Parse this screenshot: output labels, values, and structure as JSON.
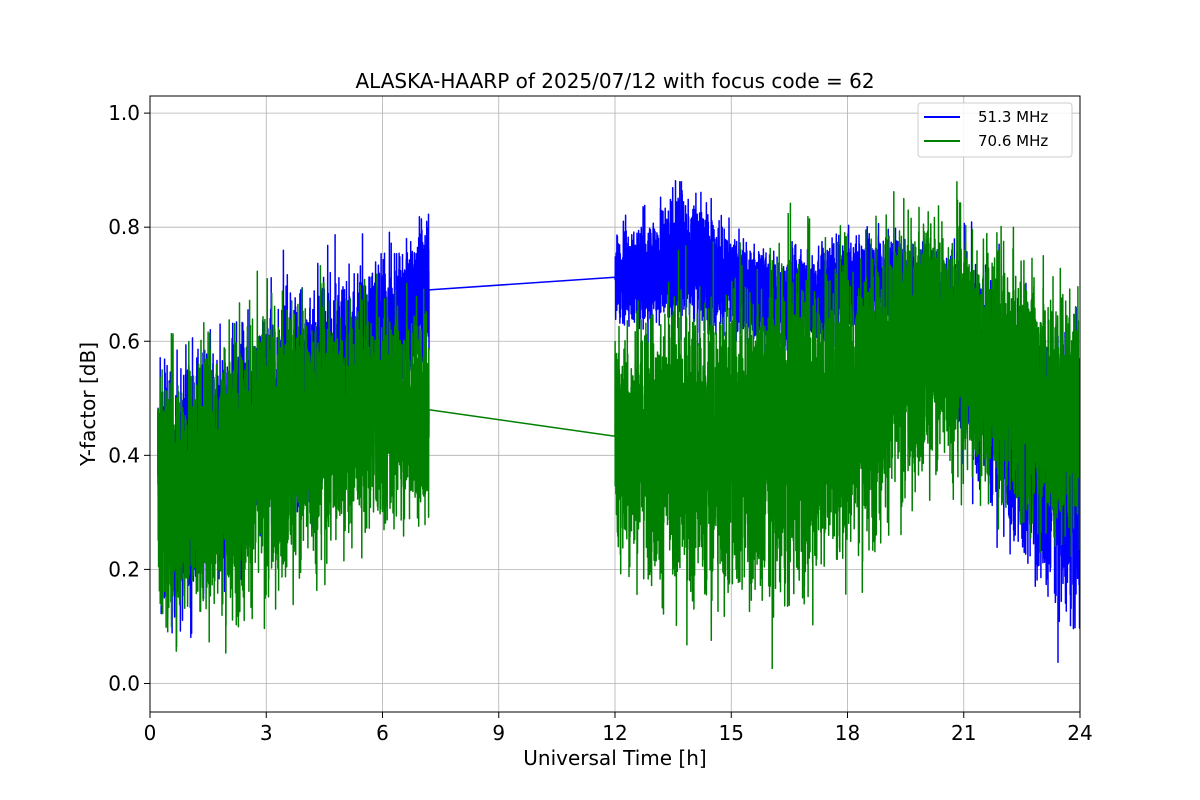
{
  "chart_data": {
    "type": "line",
    "title": "ALASKA-HAARP of 2025/07/12 with focus code = 62",
    "xlabel": "Universal Time [h]",
    "ylabel": "Y-factor [dB]",
    "xlim": [
      0,
      24
    ],
    "ylim": [
      -0.05,
      1.03
    ],
    "xticks": [
      0,
      3,
      6,
      9,
      12,
      15,
      18,
      21,
      24
    ],
    "xtick_labels": [
      "0",
      "3",
      "6",
      "9",
      "12",
      "15",
      "18",
      "21",
      "24"
    ],
    "yticks": [
      0.0,
      0.2,
      0.4,
      0.6,
      0.8,
      1.0
    ],
    "ytick_labels": [
      "0.0",
      "0.2",
      "0.4",
      "0.6",
      "0.8",
      "1.0"
    ],
    "grid": true,
    "legend_position": "top-right",
    "series": [
      {
        "name": "51.3 MHz",
        "color": "#0000ff",
        "segments": [
          {
            "x_range": [
              0.2,
              7.2
            ],
            "x_step": 0.1,
            "center": [
              0.38,
              0.36,
              0.35,
              0.34,
              0.34,
              0.33,
              0.33,
              0.34,
              0.34,
              0.34,
              0.35,
              0.35,
              0.36,
              0.36,
              0.37,
              0.38,
              0.38,
              0.39,
              0.4,
              0.4,
              0.41,
              0.42,
              0.42,
              0.43,
              0.44,
              0.44,
              0.45,
              0.45,
              0.46,
              0.46,
              0.47,
              0.47,
              0.48,
              0.48,
              0.49,
              0.49,
              0.5,
              0.5,
              0.5,
              0.5,
              0.5,
              0.51,
              0.51,
              0.52,
              0.52,
              0.53,
              0.54,
              0.54,
              0.55,
              0.55,
              0.56,
              0.56,
              0.57,
              0.58,
              0.58,
              0.59,
              0.59,
              0.6,
              0.6,
              0.61,
              0.62,
              0.62,
              0.63,
              0.64,
              0.65,
              0.66,
              0.67,
              0.68,
              0.69,
              0.69,
              0.69
            ],
            "spread": [
              0.22,
              0.24,
              0.25,
              0.26,
              0.26,
              0.27,
              0.27,
              0.27,
              0.27,
              0.27,
              0.27,
              0.27,
              0.27,
              0.27,
              0.27,
              0.27,
              0.26,
              0.26,
              0.26,
              0.26,
              0.26,
              0.26,
              0.26,
              0.26,
              0.26,
              0.26,
              0.25,
              0.25,
              0.25,
              0.25,
              0.25,
              0.25,
              0.25,
              0.25,
              0.25,
              0.24,
              0.24,
              0.24,
              0.24,
              0.24,
              0.24,
              0.24,
              0.24,
              0.23,
              0.23,
              0.23,
              0.23,
              0.22,
              0.22,
              0.22,
              0.21,
              0.21,
              0.21,
              0.2,
              0.2,
              0.2,
              0.19,
              0.19,
              0.18,
              0.18,
              0.17,
              0.17,
              0.16,
              0.16,
              0.15,
              0.15,
              0.15,
              0.14,
              0.14,
              0.14,
              0.14
            ]
          },
          {
            "x_range": [
              12.0,
              24.0
            ],
            "x_step": 0.1,
            "center": [
              0.71,
              0.71,
              0.71,
              0.71,
              0.71,
              0.71,
              0.72,
              0.72,
              0.72,
              0.72,
              0.73,
              0.73,
              0.73,
              0.74,
              0.74,
              0.74,
              0.74,
              0.75,
              0.75,
              0.75,
              0.75,
              0.75,
              0.74,
              0.74,
              0.73,
              0.73,
              0.72,
              0.72,
              0.71,
              0.71,
              0.7,
              0.7,
              0.7,
              0.69,
              0.69,
              0.69,
              0.68,
              0.68,
              0.68,
              0.68,
              0.67,
              0.67,
              0.67,
              0.67,
              0.67,
              0.67,
              0.67,
              0.68,
              0.68,
              0.68,
              0.68,
              0.68,
              0.68,
              0.69,
              0.69,
              0.69,
              0.69,
              0.69,
              0.7,
              0.7,
              0.7,
              0.7,
              0.7,
              0.7,
              0.7,
              0.71,
              0.71,
              0.71,
              0.71,
              0.71,
              0.71,
              0.71,
              0.71,
              0.7,
              0.7,
              0.7,
              0.69,
              0.69,
              0.68,
              0.68,
              0.67,
              0.67,
              0.66,
              0.65,
              0.64,
              0.63,
              0.62,
              0.61,
              0.6,
              0.59,
              0.58,
              0.57,
              0.56,
              0.55,
              0.54,
              0.53,
              0.52,
              0.51,
              0.5,
              0.49,
              0.48,
              0.47,
              0.46,
              0.45,
              0.44,
              0.43,
              0.42,
              0.41,
              0.41,
              0.4,
              0.39,
              0.38,
              0.38,
              0.37,
              0.36,
              0.36,
              0.35,
              0.35,
              0.34,
              0.34,
              0.33
            ],
            "spread": [
              0.09,
              0.09,
              0.09,
              0.1,
              0.1,
              0.1,
              0.11,
              0.11,
              0.12,
              0.12,
              0.13,
              0.13,
              0.14,
              0.14,
              0.15,
              0.15,
              0.15,
              0.15,
              0.15,
              0.15,
              0.15,
              0.15,
              0.14,
              0.14,
              0.13,
              0.13,
              0.12,
              0.12,
              0.11,
              0.11,
              0.1,
              0.1,
              0.1,
              0.1,
              0.1,
              0.1,
              0.1,
              0.1,
              0.1,
              0.1,
              0.1,
              0.1,
              0.1,
              0.1,
              0.1,
              0.1,
              0.1,
              0.1,
              0.1,
              0.1,
              0.1,
              0.1,
              0.1,
              0.1,
              0.1,
              0.1,
              0.1,
              0.1,
              0.1,
              0.1,
              0.1,
              0.1,
              0.1,
              0.1,
              0.1,
              0.1,
              0.1,
              0.1,
              0.1,
              0.1,
              0.1,
              0.1,
              0.1,
              0.1,
              0.1,
              0.1,
              0.1,
              0.1,
              0.11,
              0.11,
              0.12,
              0.12,
              0.13,
              0.14,
              0.15,
              0.16,
              0.17,
              0.18,
              0.19,
              0.2,
              0.21,
              0.22,
              0.23,
              0.24,
              0.24,
              0.25,
              0.25,
              0.26,
              0.26,
              0.27,
              0.27,
              0.27,
              0.28,
              0.28,
              0.28,
              0.28,
              0.28,
              0.28,
              0.28,
              0.28,
              0.28,
              0.28,
              0.28,
              0.28,
              0.28,
              0.28,
              0.28,
              0.28,
              0.28,
              0.28,
              0.28
            ]
          }
        ]
      },
      {
        "name": "70.6 MHz",
        "color": "#008000",
        "segments": [
          {
            "x_range": [
              0.2,
              7.2
            ],
            "x_step": 0.1,
            "center": [
              0.33,
              0.33,
              0.33,
              0.33,
              0.34,
              0.34,
              0.34,
              0.34,
              0.35,
              0.35,
              0.35,
              0.35,
              0.36,
              0.36,
              0.36,
              0.36,
              0.37,
              0.37,
              0.37,
              0.38,
              0.38,
              0.38,
              0.39,
              0.39,
              0.39,
              0.4,
              0.4,
              0.4,
              0.41,
              0.41,
              0.41,
              0.42,
              0.42,
              0.42,
              0.43,
              0.43,
              0.43,
              0.44,
              0.44,
              0.44,
              0.45,
              0.45,
              0.45,
              0.45,
              0.45,
              0.46,
              0.46,
              0.46,
              0.46,
              0.46,
              0.46,
              0.47,
              0.47,
              0.47,
              0.47,
              0.47,
              0.47,
              0.47,
              0.47,
              0.48,
              0.48,
              0.48,
              0.48,
              0.48,
              0.48,
              0.48,
              0.48,
              0.48,
              0.48,
              0.48,
              0.48
            ],
            "spread": [
              0.27,
              0.27,
              0.27,
              0.27,
              0.27,
              0.28,
              0.28,
              0.28,
              0.28,
              0.28,
              0.29,
              0.29,
              0.29,
              0.29,
              0.3,
              0.3,
              0.3,
              0.3,
              0.3,
              0.31,
              0.31,
              0.31,
              0.31,
              0.31,
              0.31,
              0.31,
              0.31,
              0.31,
              0.31,
              0.31,
              0.3,
              0.3,
              0.3,
              0.3,
              0.3,
              0.29,
              0.29,
              0.29,
              0.28,
              0.28,
              0.28,
              0.28,
              0.27,
              0.27,
              0.27,
              0.27,
              0.26,
              0.26,
              0.26,
              0.26,
              0.25,
              0.25,
              0.25,
              0.25,
              0.24,
              0.24,
              0.24,
              0.24,
              0.24,
              0.23,
              0.23,
              0.23,
              0.23,
              0.23,
              0.23,
              0.23,
              0.23,
              0.23,
              0.23,
              0.23,
              0.23
            ]
          },
          {
            "x_range": [
              12.0,
              24.0
            ],
            "x_step": 0.1,
            "center": [
              0.43,
              0.43,
              0.43,
              0.43,
              0.42,
              0.42,
              0.42,
              0.42,
              0.42,
              0.42,
              0.41,
              0.41,
              0.41,
              0.41,
              0.41,
              0.41,
              0.41,
              0.41,
              0.41,
              0.41,
              0.41,
              0.41,
              0.41,
              0.41,
              0.41,
              0.41,
              0.41,
              0.41,
              0.41,
              0.41,
              0.41,
              0.42,
              0.42,
              0.42,
              0.42,
              0.42,
              0.42,
              0.43,
              0.43,
              0.43,
              0.43,
              0.43,
              0.44,
              0.44,
              0.44,
              0.44,
              0.45,
              0.45,
              0.45,
              0.45,
              0.46,
              0.46,
              0.46,
              0.47,
              0.47,
              0.47,
              0.48,
              0.48,
              0.48,
              0.49,
              0.49,
              0.5,
              0.5,
              0.5,
              0.51,
              0.51,
              0.52,
              0.52,
              0.53,
              0.53,
              0.54,
              0.54,
              0.55,
              0.56,
              0.56,
              0.57,
              0.57,
              0.58,
              0.58,
              0.59,
              0.59,
              0.6,
              0.6,
              0.6,
              0.6,
              0.6,
              0.6,
              0.6,
              0.6,
              0.59,
              0.59,
              0.58,
              0.58,
              0.57,
              0.57,
              0.56,
              0.56,
              0.55,
              0.55,
              0.54,
              0.54,
              0.53,
              0.53,
              0.52,
              0.52,
              0.51,
              0.51,
              0.5,
              0.5,
              0.49,
              0.49,
              0.49,
              0.48,
              0.48,
              0.48,
              0.48,
              0.48,
              0.48,
              0.48,
              0.48,
              0.48
            ],
            "spread": [
              0.24,
              0.25,
              0.25,
              0.26,
              0.26,
              0.27,
              0.27,
              0.28,
              0.28,
              0.29,
              0.29,
              0.3,
              0.3,
              0.31,
              0.31,
              0.32,
              0.32,
              0.33,
              0.33,
              0.33,
              0.34,
              0.34,
              0.34,
              0.34,
              0.34,
              0.35,
              0.35,
              0.35,
              0.35,
              0.35,
              0.35,
              0.35,
              0.35,
              0.35,
              0.35,
              0.35,
              0.35,
              0.35,
              0.35,
              0.35,
              0.35,
              0.35,
              0.35,
              0.35,
              0.35,
              0.35,
              0.35,
              0.35,
              0.35,
              0.35,
              0.35,
              0.35,
              0.35,
              0.35,
              0.35,
              0.35,
              0.34,
              0.34,
              0.34,
              0.34,
              0.34,
              0.34,
              0.33,
              0.33,
              0.33,
              0.33,
              0.32,
              0.32,
              0.32,
              0.31,
              0.31,
              0.31,
              0.3,
              0.3,
              0.3,
              0.29,
              0.29,
              0.29,
              0.28,
              0.28,
              0.28,
              0.28,
              0.27,
              0.27,
              0.27,
              0.27,
              0.27,
              0.27,
              0.27,
              0.27,
              0.27,
              0.27,
              0.27,
              0.27,
              0.27,
              0.27,
              0.27,
              0.27,
              0.27,
              0.27,
              0.27,
              0.27,
              0.27,
              0.27,
              0.27,
              0.27,
              0.27,
              0.27,
              0.27,
              0.27,
              0.27,
              0.27,
              0.27,
              0.27,
              0.27,
              0.27,
              0.27,
              0.27,
              0.27,
              0.27,
              0.27
            ]
          }
        ]
      }
    ]
  }
}
